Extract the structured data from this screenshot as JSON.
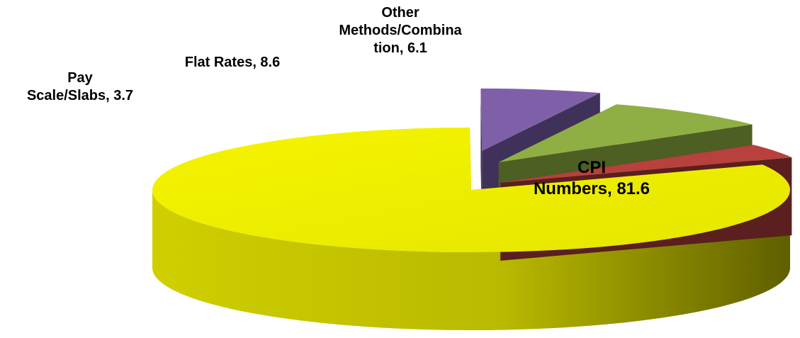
{
  "chart_data": {
    "type": "pie",
    "style": "3d-exploded",
    "slices": [
      {
        "label_lines": [
          "CPI",
          "Numbers, 81.6"
        ],
        "value": 81.6,
        "color": "#eeee00"
      },
      {
        "label_lines": [
          "Other",
          "Methods/Combina",
          "tion, 6.1"
        ],
        "value": 6.1,
        "color": "#7f60a8"
      },
      {
        "label_lines": [
          "Flat Rates, 8.6"
        ],
        "value": 8.6,
        "color": "#8faf45"
      },
      {
        "label_lines": [
          "Pay",
          "Scale/Slabs, 3.7"
        ],
        "value": 3.7,
        "color": "#b8403d"
      }
    ],
    "legend": "none"
  }
}
